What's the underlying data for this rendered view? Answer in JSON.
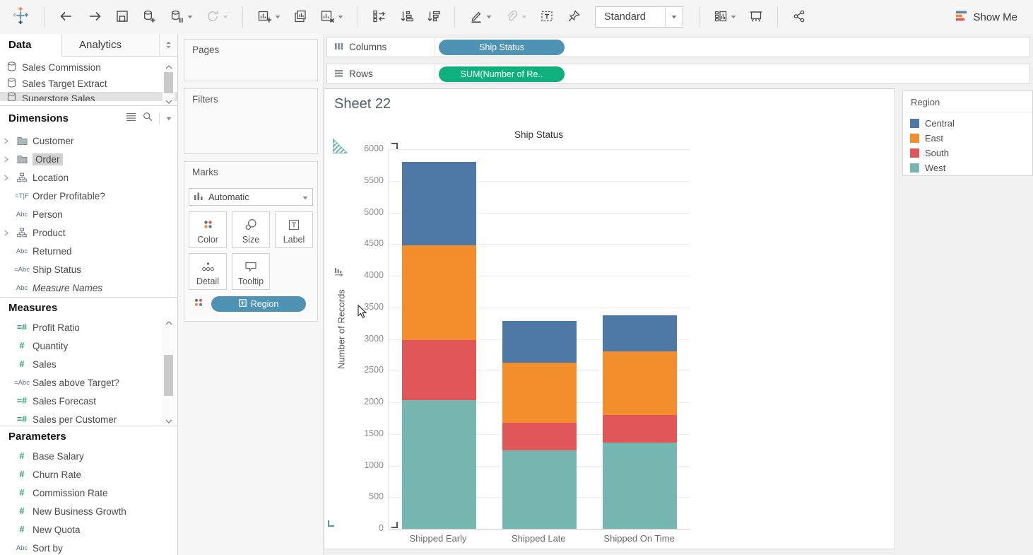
{
  "toolbar": {
    "fit_selector": "Standard",
    "show_me_label": "Show Me",
    "items": [
      {
        "icon": "tableau-logo",
        "name": "tableau-logo",
        "interactable": false
      },
      {
        "sep": true
      },
      {
        "icon": "undo",
        "name": "undo-button"
      },
      {
        "icon": "redo",
        "name": "redo-button"
      },
      {
        "icon": "save",
        "name": "save-button"
      },
      {
        "icon": "add-data",
        "name": "new-data-source-button"
      },
      {
        "icon": "pause-updates",
        "name": "pause-auto-updates-button",
        "caret": true
      },
      {
        "icon": "refresh",
        "name": "run-update-button",
        "caret": true,
        "disabled": true
      },
      {
        "sep": true
      },
      {
        "icon": "new-sheet",
        "name": "new-worksheet-button",
        "caret": true
      },
      {
        "icon": "duplicate",
        "name": "duplicate-sheet-button"
      },
      {
        "icon": "clear-sheet",
        "name": "clear-sheet-button",
        "caret": true
      },
      {
        "sep": true
      },
      {
        "icon": "swap",
        "name": "swap-rows-columns-button"
      },
      {
        "icon": "sort-asc",
        "name": "sort-ascending-button"
      },
      {
        "icon": "sort-desc",
        "name": "sort-descending-button"
      },
      {
        "sep": true
      },
      {
        "icon": "highlight",
        "name": "highlighter-button",
        "caret": true
      },
      {
        "icon": "paperclip",
        "name": "group-members-button",
        "caret": true,
        "disabled": true
      },
      {
        "icon": "text-label",
        "name": "show-mark-labels-button"
      },
      {
        "icon": "pin",
        "name": "fix-axes-button"
      },
      {
        "select": true,
        "name": "fit-selector"
      },
      {
        "sep": true
      },
      {
        "icon": "show-cards",
        "name": "show-hide-cards-button",
        "caret": true
      },
      {
        "icon": "presentation",
        "name": "presentation-mode-button"
      },
      {
        "sep": true
      },
      {
        "icon": "share",
        "name": "share-workbook-button"
      }
    ]
  },
  "sidebar": {
    "tabs": [
      {
        "label": "Data"
      },
      {
        "label": "Analytics"
      }
    ],
    "data_sources": [
      {
        "label": "Sales Commission"
      },
      {
        "label": "Sales Target Extract"
      },
      {
        "label": "Superstore Sales",
        "clipped": true,
        "selected": true
      }
    ],
    "dimensions": {
      "title": "Dimensions",
      "items": [
        {
          "icon": "folder",
          "label": "Customer",
          "expandable": true
        },
        {
          "icon": "folder",
          "label": "Order",
          "expandable": true,
          "selected": true
        },
        {
          "icon": "hierarchy",
          "label": "Location",
          "expandable": true
        },
        {
          "icon": "tf-calc",
          "label": "Order Profitable?"
        },
        {
          "icon": "abc",
          "label": "Person"
        },
        {
          "icon": "hierarchy",
          "label": "Product",
          "expandable": true
        },
        {
          "icon": "abc",
          "label": "Returned"
        },
        {
          "icon": "abc-calc",
          "label": "Ship Status"
        },
        {
          "icon": "abc",
          "label": "Measure Names",
          "italic": true
        }
      ]
    },
    "measures": {
      "title": "Measures",
      "items": [
        {
          "icon": "num-calc",
          "label": "Profit Ratio"
        },
        {
          "icon": "num",
          "label": "Quantity"
        },
        {
          "icon": "num",
          "label": "Sales"
        },
        {
          "icon": "abc-calc",
          "label": "Sales above Target?"
        },
        {
          "icon": "num-calc",
          "label": "Sales Forecast"
        },
        {
          "icon": "num-calc",
          "label": "Sales per Customer"
        }
      ]
    },
    "parameters": {
      "title": "Parameters",
      "items": [
        {
          "icon": "num",
          "label": "Base Salary"
        },
        {
          "icon": "num",
          "label": "Churn Rate"
        },
        {
          "icon": "num",
          "label": "Commission Rate"
        },
        {
          "icon": "num",
          "label": "New Business Growth"
        },
        {
          "icon": "num",
          "label": "New Quota"
        },
        {
          "icon": "abc",
          "label": "Sort by"
        }
      ]
    }
  },
  "cards": {
    "pages": {
      "title": "Pages"
    },
    "filters": {
      "title": "Filters"
    },
    "marks": {
      "title": "Marks",
      "mark_type": "Automatic",
      "buttons": [
        {
          "icon": "color",
          "label": "Color"
        },
        {
          "icon": "size",
          "label": "Size"
        },
        {
          "icon": "label",
          "label": "Label"
        },
        {
          "icon": "detail",
          "label": "Detail"
        },
        {
          "icon": "tooltip",
          "label": "Tooltip"
        }
      ],
      "pill": {
        "label": "Region",
        "color": "#4e93b4"
      }
    }
  },
  "shelves": {
    "columns": {
      "label": "Columns",
      "pills": [
        {
          "label": "Ship Status",
          "color": "#4e93b4"
        }
      ]
    },
    "rows": {
      "label": "Rows",
      "pills": [
        {
          "label": "SUM(Number of Re..",
          "color": "#0eb17e"
        }
      ]
    }
  },
  "sheet": {
    "title": "Sheet 22"
  },
  "chart_data": {
    "type": "bar",
    "stacked": true,
    "title": "Ship Status",
    "ylabel": "Number of Records",
    "categories": [
      "Shipped Early",
      "Shipped Late",
      "Shipped On Time"
    ],
    "series": [
      {
        "name": "Central",
        "color": "#4e79a7",
        "values": [
          1320,
          650,
          580
        ]
      },
      {
        "name": "East",
        "color": "#f28e2b",
        "values": [
          1500,
          950,
          1000
        ]
      },
      {
        "name": "South",
        "color": "#e15759",
        "values": [
          950,
          440,
          440
        ]
      },
      {
        "name": "West",
        "color": "#76b7b2",
        "values": [
          2030,
          1240,
          1360
        ]
      }
    ],
    "totals": [
      5800,
      3280,
      3380
    ],
    "stack_order_bottom_to_top": [
      "West",
      "South",
      "East",
      "Central"
    ],
    "ylim": [
      0,
      6000
    ],
    "ytick_step": 500,
    "grid": true,
    "legend_position": "right"
  },
  "legend": {
    "title": "Region",
    "items": [
      {
        "label": "Central",
        "color": "#4e79a7"
      },
      {
        "label": "East",
        "color": "#f28e2b"
      },
      {
        "label": "South",
        "color": "#e15759"
      },
      {
        "label": "West",
        "color": "#76b7b2"
      }
    ]
  }
}
